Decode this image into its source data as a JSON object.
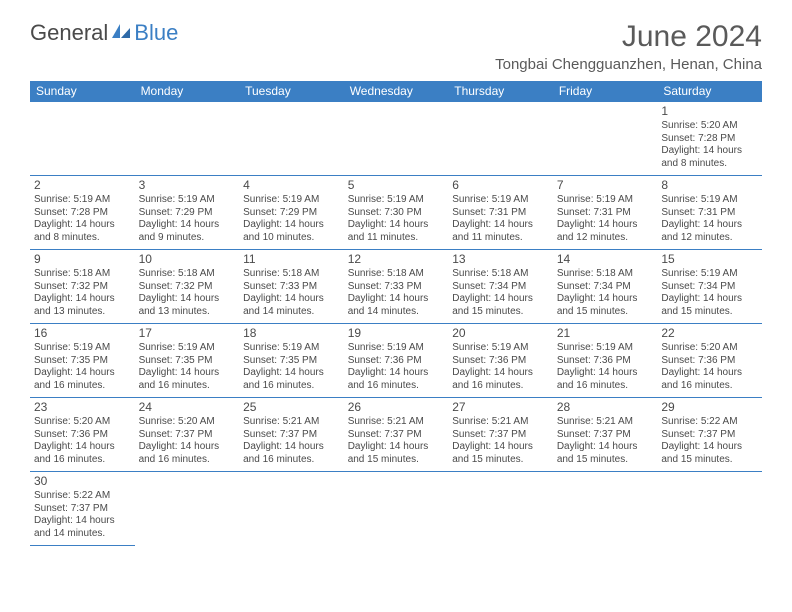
{
  "brand": {
    "part1": "General",
    "part2": "Blue"
  },
  "title": "June 2024",
  "location": "Tongbai Chengguanzhen, Henan, China",
  "colors": {
    "header_bg": "#3b7fc4",
    "header_text": "#ffffff",
    "border": "#3b7fc4",
    "text": "#4a4a4a",
    "title_text": "#5a5a5a",
    "background": "#ffffff"
  },
  "weekdays": [
    "Sunday",
    "Monday",
    "Tuesday",
    "Wednesday",
    "Thursday",
    "Friday",
    "Saturday"
  ],
  "weeks": [
    [
      null,
      null,
      null,
      null,
      null,
      null,
      {
        "n": "1",
        "sr": "5:20 AM",
        "ss": "7:28 PM",
        "dl": "14 hours and 8 minutes."
      }
    ],
    [
      {
        "n": "2",
        "sr": "5:19 AM",
        "ss": "7:28 PM",
        "dl": "14 hours and 8 minutes."
      },
      {
        "n": "3",
        "sr": "5:19 AM",
        "ss": "7:29 PM",
        "dl": "14 hours and 9 minutes."
      },
      {
        "n": "4",
        "sr": "5:19 AM",
        "ss": "7:29 PM",
        "dl": "14 hours and 10 minutes."
      },
      {
        "n": "5",
        "sr": "5:19 AM",
        "ss": "7:30 PM",
        "dl": "14 hours and 11 minutes."
      },
      {
        "n": "6",
        "sr": "5:19 AM",
        "ss": "7:31 PM",
        "dl": "14 hours and 11 minutes."
      },
      {
        "n": "7",
        "sr": "5:19 AM",
        "ss": "7:31 PM",
        "dl": "14 hours and 12 minutes."
      },
      {
        "n": "8",
        "sr": "5:19 AM",
        "ss": "7:31 PM",
        "dl": "14 hours and 12 minutes."
      }
    ],
    [
      {
        "n": "9",
        "sr": "5:18 AM",
        "ss": "7:32 PM",
        "dl": "14 hours and 13 minutes."
      },
      {
        "n": "10",
        "sr": "5:18 AM",
        "ss": "7:32 PM",
        "dl": "14 hours and 13 minutes."
      },
      {
        "n": "11",
        "sr": "5:18 AM",
        "ss": "7:33 PM",
        "dl": "14 hours and 14 minutes."
      },
      {
        "n": "12",
        "sr": "5:18 AM",
        "ss": "7:33 PM",
        "dl": "14 hours and 14 minutes."
      },
      {
        "n": "13",
        "sr": "5:18 AM",
        "ss": "7:34 PM",
        "dl": "14 hours and 15 minutes."
      },
      {
        "n": "14",
        "sr": "5:18 AM",
        "ss": "7:34 PM",
        "dl": "14 hours and 15 minutes."
      },
      {
        "n": "15",
        "sr": "5:19 AM",
        "ss": "7:34 PM",
        "dl": "14 hours and 15 minutes."
      }
    ],
    [
      {
        "n": "16",
        "sr": "5:19 AM",
        "ss": "7:35 PM",
        "dl": "14 hours and 16 minutes."
      },
      {
        "n": "17",
        "sr": "5:19 AM",
        "ss": "7:35 PM",
        "dl": "14 hours and 16 minutes."
      },
      {
        "n": "18",
        "sr": "5:19 AM",
        "ss": "7:35 PM",
        "dl": "14 hours and 16 minutes."
      },
      {
        "n": "19",
        "sr": "5:19 AM",
        "ss": "7:36 PM",
        "dl": "14 hours and 16 minutes."
      },
      {
        "n": "20",
        "sr": "5:19 AM",
        "ss": "7:36 PM",
        "dl": "14 hours and 16 minutes."
      },
      {
        "n": "21",
        "sr": "5:19 AM",
        "ss": "7:36 PM",
        "dl": "14 hours and 16 minutes."
      },
      {
        "n": "22",
        "sr": "5:20 AM",
        "ss": "7:36 PM",
        "dl": "14 hours and 16 minutes."
      }
    ],
    [
      {
        "n": "23",
        "sr": "5:20 AM",
        "ss": "7:36 PM",
        "dl": "14 hours and 16 minutes."
      },
      {
        "n": "24",
        "sr": "5:20 AM",
        "ss": "7:37 PM",
        "dl": "14 hours and 16 minutes."
      },
      {
        "n": "25",
        "sr": "5:21 AM",
        "ss": "7:37 PM",
        "dl": "14 hours and 16 minutes."
      },
      {
        "n": "26",
        "sr": "5:21 AM",
        "ss": "7:37 PM",
        "dl": "14 hours and 15 minutes."
      },
      {
        "n": "27",
        "sr": "5:21 AM",
        "ss": "7:37 PM",
        "dl": "14 hours and 15 minutes."
      },
      {
        "n": "28",
        "sr": "5:21 AM",
        "ss": "7:37 PM",
        "dl": "14 hours and 15 minutes."
      },
      {
        "n": "29",
        "sr": "5:22 AM",
        "ss": "7:37 PM",
        "dl": "14 hours and 15 minutes."
      }
    ],
    [
      {
        "n": "30",
        "sr": "5:22 AM",
        "ss": "7:37 PM",
        "dl": "14 hours and 14 minutes."
      },
      null,
      null,
      null,
      null,
      null,
      null
    ]
  ],
  "labels": {
    "sunrise": "Sunrise:",
    "sunset": "Sunset:",
    "daylight": "Daylight:"
  }
}
